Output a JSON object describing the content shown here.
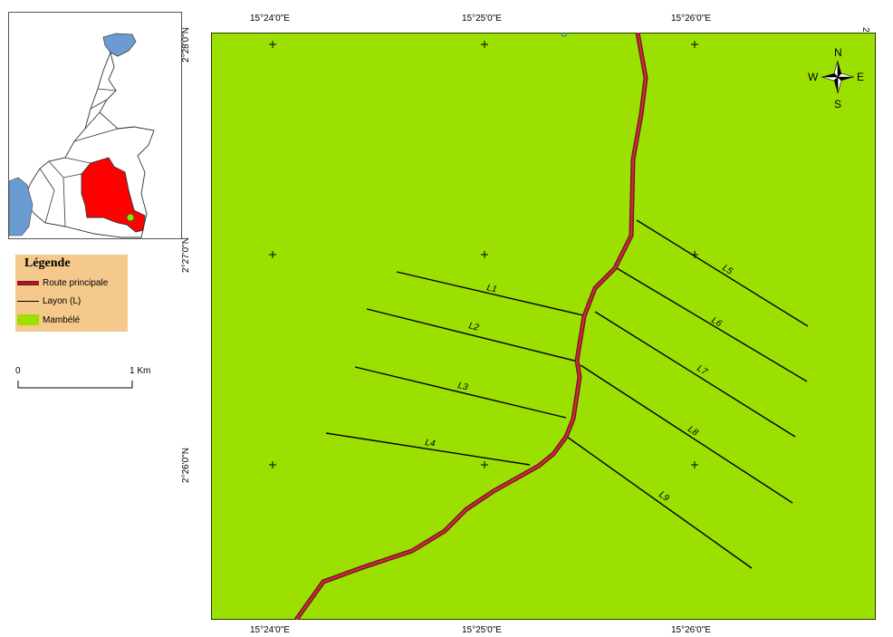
{
  "legend": {
    "title": "Légende",
    "items": [
      {
        "label": "Route principale",
        "symbol": "road"
      },
      {
        "label": "Layon (L)",
        "symbol": "line"
      },
      {
        "label": "Mambélé",
        "symbol": "area"
      }
    ]
  },
  "scale": {
    "left_label": "0",
    "right_label": "1 Km"
  },
  "grid": {
    "longitudes": [
      "15°24'0\"E",
      "15°25'0\"E",
      "15°26'0\"E"
    ],
    "latitudes": [
      "2°28'0\"N",
      "2°27'0\"N",
      "2°26'0\"N"
    ]
  },
  "north_arrow": {
    "n": "N",
    "s": "S",
    "e": "E",
    "w": "W",
    "icon": "compass-rose-icon"
  },
  "lines": [
    "L1",
    "L2",
    "L3",
    "L4",
    "L5",
    "L6",
    "L7",
    "L8",
    "L9"
  ],
  "colors": {
    "area": "#9be000",
    "road": "#b4142a",
    "highlight_region": "#ff0000",
    "water": "#6a9bd1"
  }
}
